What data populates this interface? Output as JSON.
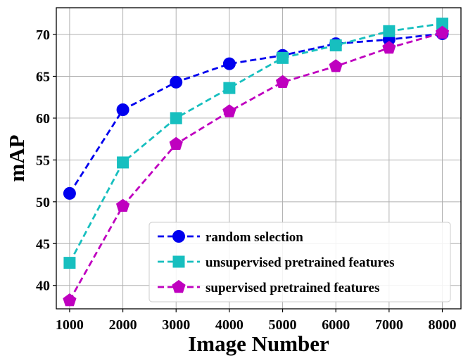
{
  "chart_data": {
    "type": "line",
    "title": "",
    "xlabel": "Image Number",
    "ylabel": "mAP",
    "x": [
      1000,
      2000,
      3000,
      4000,
      5000,
      6000,
      7000,
      8000
    ],
    "x_ticks": [
      "1000",
      "2000",
      "3000",
      "4000",
      "5000",
      "6000",
      "7000",
      "8000"
    ],
    "y_ticks": [
      "40",
      "45",
      "50",
      "55",
      "60",
      "65",
      "70"
    ],
    "xlim": [
      750,
      8350
    ],
    "ylim": [
      37.2,
      73.2
    ],
    "grid": true,
    "legend_position": "lower-right",
    "series": [
      {
        "name": "random selection",
        "color": "#0000ee",
        "marker": "circle",
        "values": [
          51.0,
          61.0,
          64.3,
          66.5,
          67.5,
          68.9,
          69.4,
          70.1
        ]
      },
      {
        "name": "unsupervised pretrained features",
        "color": "#17bfbf",
        "marker": "square",
        "values": [
          42.7,
          54.7,
          60.0,
          63.6,
          67.2,
          68.7,
          70.4,
          71.3
        ]
      },
      {
        "name": "supervised pretrained features",
        "color": "#bf00bf",
        "marker": "pentagon",
        "values": [
          38.2,
          49.5,
          56.9,
          60.8,
          64.3,
          66.2,
          68.4,
          70.2
        ]
      }
    ]
  }
}
